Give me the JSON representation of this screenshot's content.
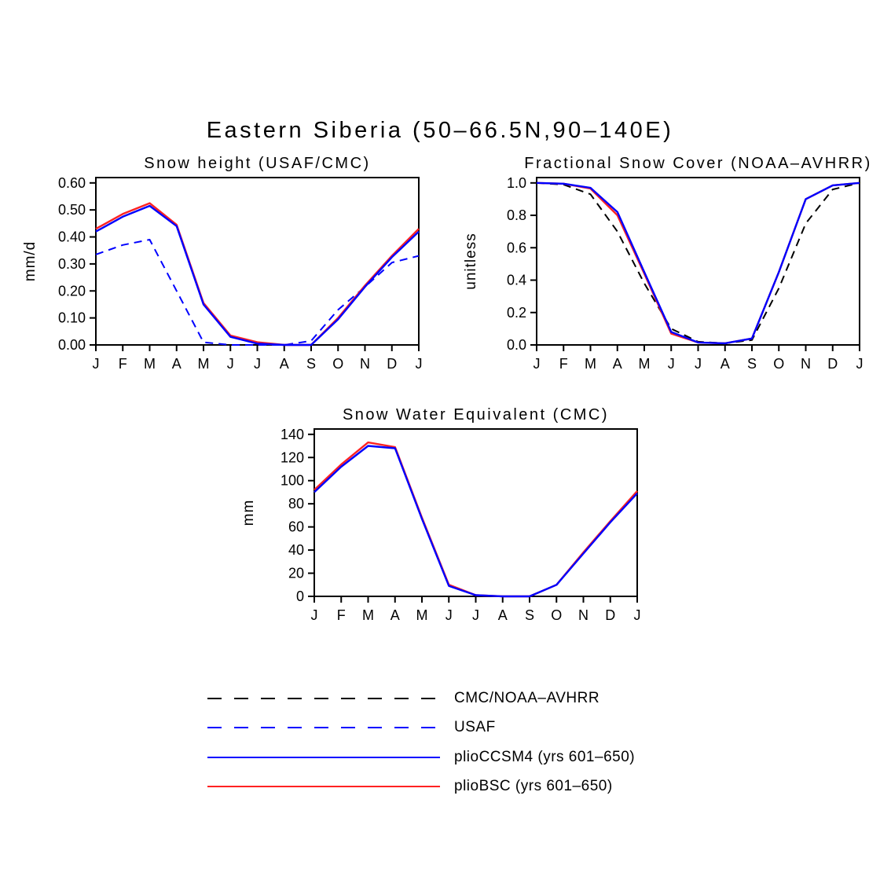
{
  "figure": {
    "title": "Eastern Siberia (50–66.5N,90–140E)"
  },
  "chart_data": [
    {
      "type": "line",
      "title": "Snow height (USAF/CMC)",
      "ylabel": "mm/d",
      "ylim": [
        0,
        0.6
      ],
      "ytick_values": [
        0,
        0.1,
        0.2,
        0.3,
        0.4,
        0.5,
        0.6
      ],
      "ytick_labels": [
        "0.00",
        "0.10",
        "0.20",
        "0.30",
        "0.40",
        "0.50",
        "0.60"
      ],
      "categories": [
        "J",
        "F",
        "M",
        "A",
        "M",
        "J",
        "J",
        "A",
        "S",
        "O",
        "N",
        "D",
        "J"
      ],
      "grid": false,
      "legend_position": "none",
      "series": [
        {
          "name": "USAF",
          "color": "#0000ff",
          "dash": "dashed",
          "values": [
            0.335,
            0.37,
            0.39,
            0.2,
            0.01,
            0.0,
            0.0,
            0.0,
            0.015,
            0.13,
            0.215,
            0.305,
            0.33
          ]
        },
        {
          "name": "plioBSC (yrs 601–650)",
          "color": "#ff2222",
          "dash": "solid",
          "values": [
            0.43,
            0.485,
            0.525,
            0.445,
            0.155,
            0.035,
            0.01,
            0.0,
            0.0,
            0.1,
            0.22,
            0.33,
            0.43
          ]
        },
        {
          "name": "plioCCSM4 (yrs 601–650)",
          "color": "#0000ff",
          "dash": "solid",
          "values": [
            0.42,
            0.475,
            0.515,
            0.44,
            0.15,
            0.03,
            0.005,
            0.0,
            0.0,
            0.095,
            0.215,
            0.325,
            0.42
          ]
        }
      ]
    },
    {
      "type": "line",
      "title": "Fractional Snow Cover (NOAA–AVHRR)",
      "ylabel": "unitless",
      "ylim": [
        0,
        1.0
      ],
      "ytick_values": [
        0,
        0.2,
        0.4,
        0.6,
        0.8,
        1.0
      ],
      "ytick_labels": [
        "0.0",
        "0.2",
        "0.4",
        "0.6",
        "0.8",
        "1.0"
      ],
      "categories": [
        "J",
        "F",
        "M",
        "A",
        "M",
        "J",
        "J",
        "A",
        "S",
        "O",
        "N",
        "D",
        "J"
      ],
      "grid": false,
      "legend_position": "none",
      "series": [
        {
          "name": "CMC/NOAA–AVHRR",
          "color": "#000000",
          "dash": "dashed",
          "values": [
            1.0,
            0.99,
            0.93,
            0.7,
            0.38,
            0.1,
            0.02,
            0.01,
            0.03,
            0.35,
            0.75,
            0.96,
            1.0
          ]
        },
        {
          "name": "plioBSC (yrs 601–650)",
          "color": "#ff2222",
          "dash": "solid",
          "values": [
            1.0,
            0.995,
            0.965,
            0.8,
            0.44,
            0.07,
            0.015,
            0.01,
            0.04,
            0.45,
            0.9,
            0.985,
            1.0
          ]
        },
        {
          "name": "plioCCSM4 (yrs 601–650)",
          "color": "#0000ff",
          "dash": "solid",
          "values": [
            1.0,
            0.995,
            0.97,
            0.82,
            0.45,
            0.08,
            0.015,
            0.01,
            0.04,
            0.45,
            0.9,
            0.985,
            1.0
          ]
        }
      ]
    },
    {
      "type": "line",
      "title": "Snow Water Equivalent (CMC)",
      "ylabel": "mm",
      "ylim": [
        0,
        140
      ],
      "ytick_values": [
        0,
        20,
        40,
        60,
        80,
        100,
        120,
        140
      ],
      "ytick_labels": [
        "0",
        "20",
        "40",
        "60",
        "80",
        "100",
        "120",
        "140"
      ],
      "categories": [
        "J",
        "F",
        "M",
        "A",
        "M",
        "J",
        "J",
        "A",
        "S",
        "O",
        "N",
        "D",
        "J"
      ],
      "grid": false,
      "legend_position": "none",
      "series": [
        {
          "name": "plioBSC (yrs 601–650)",
          "color": "#ff2222",
          "dash": "solid",
          "values": [
            92,
            114,
            133,
            129,
            68,
            10,
            1,
            0,
            0,
            10,
            38,
            65,
            91
          ]
        },
        {
          "name": "plioCCSM4 (yrs 601–650)",
          "color": "#0000ff",
          "dash": "solid",
          "values": [
            90,
            112,
            130,
            128,
            67,
            9,
            1,
            0,
            0,
            10,
            37,
            64,
            89
          ]
        }
      ]
    }
  ],
  "legend": {
    "entries": [
      {
        "label": "CMC/NOAA–AVHRR",
        "color": "#000000",
        "dash": "dashed"
      },
      {
        "label": "USAF",
        "color": "#0000ff",
        "dash": "dashed"
      },
      {
        "label": "plioCCSM4 (yrs 601–650)",
        "color": "#0000ff",
        "dash": "solid"
      },
      {
        "label": "plioBSC (yrs 601–650)",
        "color": "#ff2222",
        "dash": "solid"
      }
    ]
  }
}
